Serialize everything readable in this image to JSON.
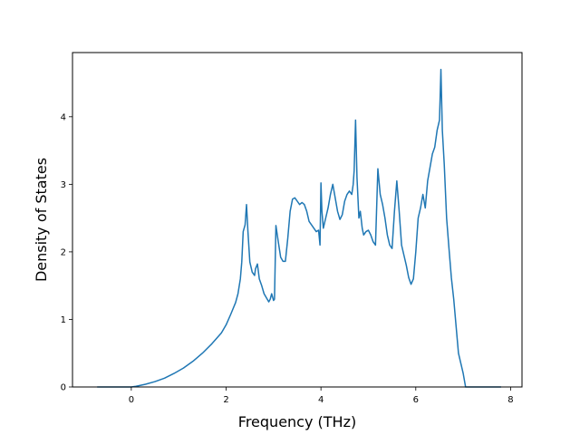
{
  "chart_data": {
    "type": "line",
    "title": "",
    "xlabel": "Frequency (THz)",
    "ylabel": "Density of States",
    "xlim": [
      -1.24,
      8.24
    ],
    "ylim": [
      0,
      4.95
    ],
    "xticks": [
      0,
      2,
      4,
      6,
      8
    ],
    "yticks": [
      0,
      1,
      2,
      3,
      4
    ],
    "grid": false,
    "line_color": "#1f77b4",
    "series": [
      {
        "x": [
          -0.72,
          -0.4,
          0,
          0.1,
          0.3,
          0.5,
          0.7,
          0.9,
          1.1,
          1.3,
          1.5,
          1.7,
          1.9,
          2.0,
          2.1,
          2.2,
          2.25,
          2.3,
          2.33,
          2.36,
          2.4,
          2.43,
          2.46,
          2.5,
          2.55,
          2.6,
          2.62,
          2.66,
          2.7,
          2.75,
          2.8,
          2.85,
          2.9,
          2.93,
          2.96,
          3.0,
          3.02,
          3.05,
          3.1,
          3.15,
          3.2,
          3.25,
          3.3,
          3.35,
          3.4,
          3.45,
          3.5,
          3.55,
          3.6,
          3.65,
          3.7,
          3.75,
          3.8,
          3.85,
          3.9,
          3.95,
          3.98,
          4.0,
          4.02,
          4.05,
          4.1,
          4.15,
          4.2,
          4.25,
          4.3,
          4.35,
          4.4,
          4.45,
          4.5,
          4.55,
          4.6,
          4.65,
          4.68,
          4.7,
          4.73,
          4.76,
          4.8,
          4.83,
          4.87,
          4.9,
          4.95,
          5.0,
          5.05,
          5.1,
          5.15,
          5.2,
          5.25,
          5.3,
          5.35,
          5.4,
          5.45,
          5.5,
          5.55,
          5.6,
          5.65,
          5.7,
          5.75,
          5.8,
          5.85,
          5.9,
          5.95,
          6.0,
          6.05,
          6.1,
          6.15,
          6.2,
          6.25,
          6.3,
          6.35,
          6.4,
          6.45,
          6.5,
          6.53,
          6.56,
          6.6,
          6.65,
          6.7,
          6.75,
          6.8,
          6.85,
          6.9,
          6.95,
          7.0,
          7.05,
          7.1,
          7.3,
          7.5,
          7.8
        ],
        "y": [
          0,
          0,
          0,
          0.01,
          0.04,
          0.08,
          0.13,
          0.2,
          0.28,
          0.38,
          0.5,
          0.64,
          0.8,
          0.92,
          1.08,
          1.25,
          1.38,
          1.6,
          1.85,
          2.3,
          2.4,
          2.7,
          2.3,
          1.85,
          1.7,
          1.65,
          1.75,
          1.82,
          1.6,
          1.5,
          1.38,
          1.32,
          1.26,
          1.3,
          1.38,
          1.28,
          1.3,
          2.39,
          2.15,
          1.92,
          1.86,
          1.86,
          2.2,
          2.6,
          2.78,
          2.8,
          2.75,
          2.7,
          2.73,
          2.7,
          2.6,
          2.45,
          2.4,
          2.35,
          2.3,
          2.32,
          2.1,
          3.02,
          2.6,
          2.35,
          2.5,
          2.65,
          2.85,
          3.0,
          2.8,
          2.6,
          2.48,
          2.55,
          2.75,
          2.85,
          2.9,
          2.85,
          3.0,
          3.2,
          3.95,
          3.1,
          2.5,
          2.6,
          2.35,
          2.25,
          2.3,
          2.32,
          2.25,
          2.15,
          2.1,
          3.23,
          2.85,
          2.7,
          2.5,
          2.25,
          2.1,
          2.05,
          2.6,
          3.05,
          2.6,
          2.1,
          1.95,
          1.8,
          1.62,
          1.52,
          1.6,
          2.0,
          2.5,
          2.65,
          2.85,
          2.65,
          3.05,
          3.25,
          3.45,
          3.55,
          3.8,
          3.95,
          4.7,
          3.8,
          3.3,
          2.5,
          2.05,
          1.62,
          1.3,
          0.9,
          0.5,
          0.35,
          0.2,
          0,
          0,
          0,
          0,
          0
        ]
      }
    ]
  }
}
